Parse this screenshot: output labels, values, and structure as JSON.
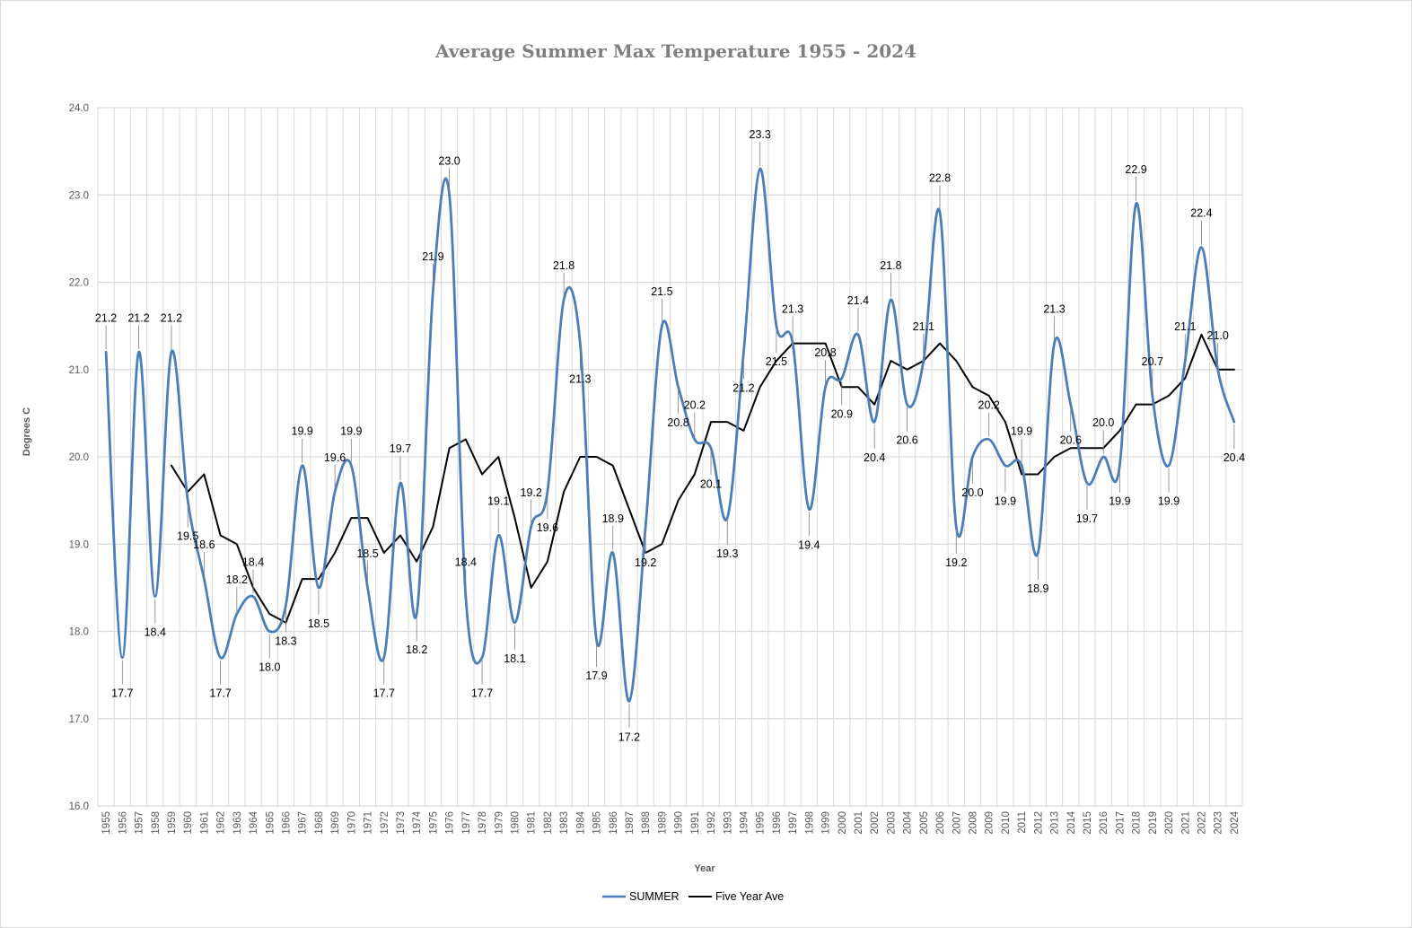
{
  "chart_data": {
    "type": "line",
    "title": "Average Summer Max Temperature 1955 - 2024",
    "xlabel": "Year",
    "ylabel": "Degrees C",
    "ylim": [
      16.0,
      24.0
    ],
    "y_ticks": [
      "16.0",
      "17.0",
      "18.0",
      "19.0",
      "20.0",
      "21.0",
      "22.0",
      "23.0",
      "24.0"
    ],
    "x": [
      "1955",
      "1956",
      "1957",
      "1958",
      "1959",
      "1960",
      "1961",
      "1962",
      "1963",
      "1964",
      "1965",
      "1966",
      "1967",
      "1968",
      "1969",
      "1970",
      "1971",
      "1972",
      "1973",
      "1974",
      "1975",
      "1976",
      "1977",
      "1978",
      "1979",
      "1980",
      "1981",
      "1982",
      "1983",
      "1984",
      "1985",
      "1986",
      "1987",
      "1988",
      "1989",
      "1990",
      "1991",
      "1992",
      "1993",
      "1994",
      "1995",
      "1996",
      "1997",
      "1998",
      "1999",
      "2000",
      "2001",
      "2002",
      "2003",
      "2004",
      "2005",
      "2006",
      "2007",
      "2008",
      "2009",
      "2010",
      "2011",
      "2012",
      "2013",
      "2014",
      "2015",
      "2016",
      "2017",
      "2018",
      "2019",
      "2020",
      "2021",
      "2022",
      "2023",
      "2024"
    ],
    "grid": true,
    "legend_position": "bottom",
    "series": [
      {
        "name": "SUMMER",
        "color": "#4a7ebb",
        "smooth": true,
        "show_labels": true,
        "values": [
          21.2,
          17.7,
          21.2,
          18.4,
          21.2,
          19.5,
          18.6,
          17.7,
          18.2,
          18.4,
          18.0,
          18.3,
          19.9,
          18.5,
          19.6,
          19.9,
          18.5,
          17.7,
          19.7,
          18.2,
          21.9,
          23.0,
          18.4,
          17.7,
          19.1,
          18.1,
          19.2,
          19.6,
          21.8,
          21.3,
          17.9,
          18.9,
          17.2,
          19.2,
          21.5,
          20.8,
          20.2,
          20.1,
          19.3,
          21.2,
          23.3,
          21.5,
          21.3,
          19.4,
          20.8,
          20.9,
          21.4,
          20.4,
          21.8,
          20.6,
          21.1,
          22.8,
          19.2,
          20.0,
          20.2,
          19.9,
          19.9,
          18.9,
          21.3,
          20.6,
          19.7,
          20.0,
          19.9,
          22.9,
          20.7,
          19.9,
          21.1,
          22.4,
          21.0,
          20.4
        ]
      },
      {
        "name": "Five Year Ave",
        "color": "#000000",
        "smooth": false,
        "show_labels": false,
        "values": [
          null,
          null,
          null,
          null,
          19.9,
          19.6,
          19.8,
          19.1,
          19.0,
          18.5,
          18.2,
          18.1,
          18.6,
          18.6,
          18.9,
          19.3,
          19.3,
          18.9,
          19.1,
          18.8,
          19.2,
          20.1,
          20.2,
          19.8,
          20.0,
          19.3,
          18.5,
          18.8,
          19.6,
          20.0,
          20.0,
          19.9,
          19.4,
          18.9,
          19.0,
          19.5,
          19.8,
          20.4,
          20.4,
          20.3,
          20.8,
          21.1,
          21.3,
          21.3,
          21.3,
          20.8,
          20.8,
          20.6,
          21.1,
          21.0,
          21.1,
          21.3,
          21.1,
          20.8,
          20.7,
          20.4,
          19.8,
          19.8,
          20.0,
          20.1,
          20.1,
          20.1,
          20.3,
          20.6,
          20.6,
          20.7,
          20.9,
          21.4,
          21.0,
          21.0
        ]
      }
    ]
  }
}
